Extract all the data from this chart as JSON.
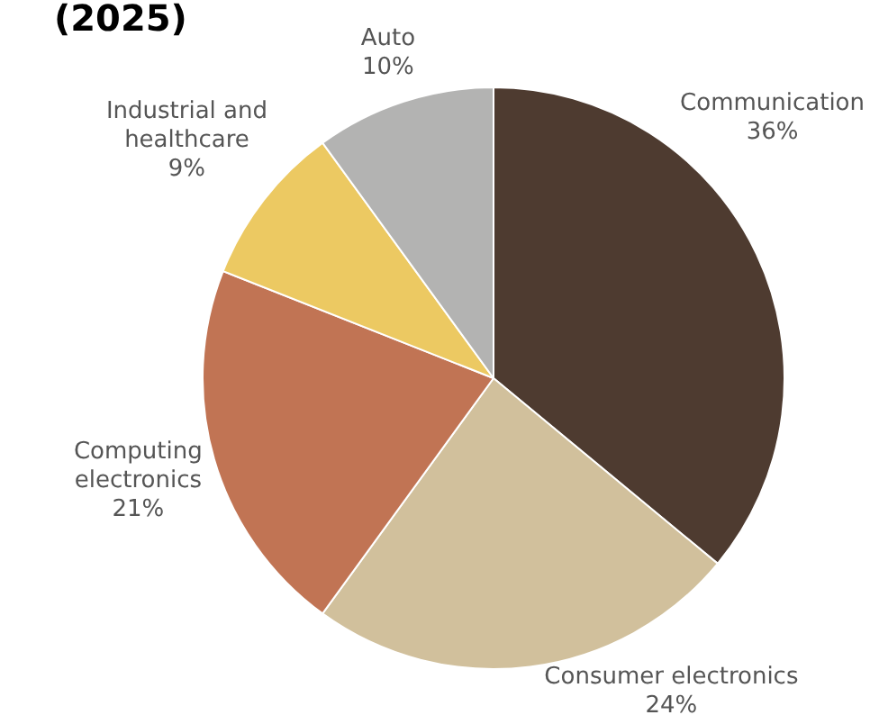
{
  "chart_data": {
    "type": "pie",
    "title": "(2025)",
    "categories": [
      "Communication",
      "Consumer electronics",
      "Computing electronics",
      "Industrial and healthcare",
      "Auto"
    ],
    "values": [
      36,
      24,
      21,
      9,
      10
    ],
    "colors": [
      "#4e3b30",
      "#d1c09c",
      "#c17454",
      "#ecc962",
      "#b3b3b2"
    ],
    "value_labels": [
      "36%",
      "24%",
      "21%",
      "9%",
      "10%"
    ],
    "legend": false
  }
}
